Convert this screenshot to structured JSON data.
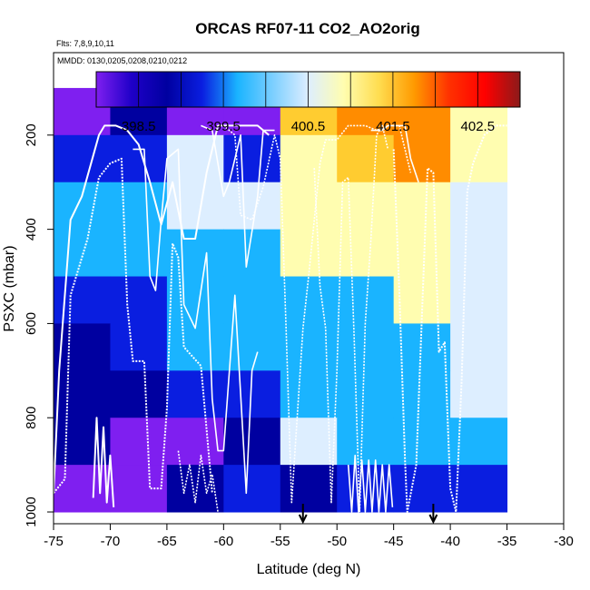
{
  "chart_data": {
    "type": "heatmap",
    "title": "ORCAS RF07-11 CO2_AO2orig",
    "subtitle_flights": "Flts: 7,8,9,10,11",
    "subtitle_dates": "MMDD: 0130,0205,0208,0210,0212",
    "xlabel": "Latitude (deg N)",
    "ylabel": "PSXC (mbar)",
    "xlim": [
      -75,
      -30
    ],
    "ylim": [
      1025,
      25
    ],
    "x_ticks": [
      -75,
      -70,
      -65,
      -60,
      -55,
      -50,
      -45,
      -40,
      -35,
      -30
    ],
    "y_ticks": [
      200,
      400,
      600,
      800,
      1000
    ],
    "colorbar": {
      "range": [
        398.0,
        403.0
      ],
      "ticks": [
        398.5,
        399.5,
        400.5,
        401.5,
        402.5
      ],
      "divisions": [
        398.0,
        398.5,
        399.0,
        399.5,
        400.0,
        400.5,
        401.0,
        401.5,
        402.0,
        402.5,
        403.0
      ],
      "colors": [
        "#7f1ff0",
        "#0000a0",
        "#0a1ee0",
        "#1ab4ff",
        "#ddeeff",
        "#fffdb0",
        "#ffcc30",
        "#ff8c00",
        "#ff0000",
        "#8b1a1a"
      ]
    },
    "lat_bins": [
      -75,
      -70,
      -65,
      -60,
      -55,
      -50,
      -45,
      -40,
      -35
    ],
    "p_bins": [
      100,
      200,
      300,
      400,
      500,
      600,
      700,
      800,
      900,
      1000
    ],
    "values": [
      [
        398.3,
        398.5,
        398.3,
        398.3,
        401.2,
        401.7,
        401.9,
        400.8
      ],
      [
        399.3,
        399.3,
        400.2,
        399.2,
        400.9,
        401.1,
        401.8,
        400.6
      ],
      [
        399.8,
        399.7,
        400.2,
        400.2,
        400.6,
        400.9,
        400.9,
        400.4
      ],
      [
        399.6,
        399.5,
        399.8,
        399.7,
        400.5,
        400.6,
        400.7,
        400.4
      ],
      [
        399.3,
        399.4,
        399.6,
        399.8,
        399.8,
        399.7,
        400.5,
        400.3
      ],
      [
        398.9,
        399.0,
        399.5,
        399.7,
        399.7,
        399.5,
        399.6,
        400.0
      ],
      [
        398.8,
        398.8,
        399.1,
        399.3,
        399.6,
        399.6,
        399.8,
        400.0
      ],
      [
        398.5,
        398.4,
        398.2,
        398.9,
        400.3,
        399.5,
        399.6,
        399.7
      ],
      [
        398.2,
        398.3,
        398.7,
        399.0,
        398.9,
        399.0,
        399.4,
        399.4
      ]
    ],
    "arrow_markers_lat": [
      -53,
      -41.5
    ],
    "flight_tracks": [
      {
        "name": "track-1",
        "points": [
          [
            -75,
            960
          ],
          [
            -74.5,
            700
          ],
          [
            -73.5,
            380
          ],
          [
            -72.5,
            330
          ],
          [
            -71,
            200
          ],
          [
            -70.5,
            180
          ],
          [
            -69.5,
            180
          ],
          [
            -68.5,
            190
          ],
          [
            -67.5,
            220
          ],
          [
            -66.5,
            300
          ],
          [
            -65.5,
            390
          ],
          [
            -64.5,
            300
          ],
          [
            -63.5,
            420
          ],
          [
            -62.5,
            420
          ],
          [
            -61.5,
            280
          ],
          [
            -60.5,
            180
          ],
          [
            -59.5,
            180
          ],
          [
            -58.5,
            180
          ],
          [
            -57,
            180
          ],
          [
            -56,
            200
          ]
        ]
      },
      {
        "name": "track-2",
        "points": [
          [
            -60,
            180
          ],
          [
            -59,
            200
          ],
          [
            -58.5,
            370
          ],
          [
            -57.5,
            380
          ],
          [
            -56.5,
            310
          ],
          [
            -55.5,
            200
          ],
          [
            -55,
            250
          ],
          [
            -54.5,
            600
          ],
          [
            -54,
            980
          ],
          [
            -53,
            610
          ],
          [
            -52.5,
            500
          ],
          [
            -51.5,
            260
          ],
          [
            -51,
            210
          ],
          [
            -50,
            210
          ],
          [
            -49,
            180
          ],
          [
            -47.5,
            180
          ],
          [
            -46.5,
            190
          ],
          [
            -45.5,
            180
          ],
          [
            -44.5,
            180
          ],
          [
            -43.5,
            280
          ]
        ]
      },
      {
        "name": "track-3",
        "points": [
          [
            -62,
            180
          ],
          [
            -61,
            190
          ],
          [
            -60,
            330
          ],
          [
            -59.5,
            300
          ],
          [
            -58.5,
            200
          ],
          [
            -58,
            480
          ],
          [
            -57,
            330
          ],
          [
            -56.5,
            190
          ],
          [
            -55.5,
            190
          ]
        ]
      },
      {
        "name": "track-4",
        "points": [
          [
            -75,
            960
          ],
          [
            -74,
            930
          ],
          [
            -73.5,
            540
          ],
          [
            -72,
            420
          ],
          [
            -71,
            290
          ],
          [
            -70,
            260
          ],
          [
            -69,
            250
          ],
          [
            -68.5,
            560
          ],
          [
            -68,
            680
          ],
          [
            -67,
            680
          ],
          [
            -66.5,
            950
          ],
          [
            -65.5,
            950
          ],
          [
            -65,
            780
          ],
          [
            -64.5,
            430
          ],
          [
            -64,
            460
          ],
          [
            -63.5,
            650
          ],
          [
            -62,
            690
          ],
          [
            -61,
            960
          ]
        ]
      },
      {
        "name": "track-5",
        "points": [
          [
            -68,
            230
          ],
          [
            -67,
            230
          ],
          [
            -66.5,
            500
          ],
          [
            -66,
            530
          ],
          [
            -65.5,
            380
          ],
          [
            -65,
            250
          ],
          [
            -64,
            230
          ],
          [
            -63.5,
            560
          ],
          [
            -62.5,
            610
          ],
          [
            -61.5,
            450
          ],
          [
            -61,
            760
          ],
          [
            -60.5,
            870
          ],
          [
            -60,
            870
          ],
          [
            -59,
            540
          ],
          [
            -58.5,
            750
          ],
          [
            -58,
            960
          ],
          [
            -57.5,
            700
          ],
          [
            -57,
            660
          ]
        ]
      },
      {
        "name": "track-6",
        "points": [
          [
            -64,
            870
          ],
          [
            -63.5,
            960
          ],
          [
            -63,
            900
          ],
          [
            -62.5,
            980
          ],
          [
            -62,
            880
          ],
          [
            -61.5,
            960
          ],
          [
            -61,
            920
          ],
          [
            -60.5,
            1000
          ]
        ]
      },
      {
        "name": "track-7",
        "points": [
          [
            -71.5,
            970
          ],
          [
            -71.2,
            800
          ],
          [
            -70.9,
            960
          ],
          [
            -70.6,
            820
          ],
          [
            -70.3,
            980
          ],
          [
            -70,
            880
          ],
          [
            -69.7,
            990
          ]
        ]
      },
      {
        "name": "track-8",
        "points": [
          [
            -52,
            270
          ],
          [
            -51.5,
            520
          ],
          [
            -51,
            610
          ],
          [
            -50.5,
            980
          ],
          [
            -50,
            700
          ],
          [
            -49.5,
            300
          ],
          [
            -49,
            290
          ],
          [
            -48.5,
            620
          ],
          [
            -48,
            1000
          ],
          [
            -47.5,
            600
          ],
          [
            -47,
            420
          ],
          [
            -46.5,
            200
          ],
          [
            -46,
            180
          ],
          [
            -45.5,
            230
          ]
        ]
      },
      {
        "name": "track-9",
        "points": [
          [
            -49,
            900
          ],
          [
            -48.7,
            1000
          ],
          [
            -48.4,
            880
          ],
          [
            -48.1,
            1000
          ],
          [
            -47.8,
            890
          ],
          [
            -47.5,
            1000
          ],
          [
            -47.2,
            890
          ],
          [
            -46.9,
            1000
          ],
          [
            -46.6,
            890
          ],
          [
            -46.3,
            1000
          ],
          [
            -46,
            900
          ],
          [
            -45.7,
            1000
          ],
          [
            -45.4,
            900
          ],
          [
            -45.1,
            990
          ]
        ]
      },
      {
        "name": "track-10",
        "points": [
          [
            -45,
            230
          ],
          [
            -44.5,
            530
          ],
          [
            -44,
            890
          ],
          [
            -43.8,
            1000
          ],
          [
            -43,
            900
          ],
          [
            -42.5,
            580
          ],
          [
            -42,
            270
          ],
          [
            -41.5,
            280
          ],
          [
            -41,
            660
          ],
          [
            -40.5,
            640
          ],
          [
            -40,
            950
          ],
          [
            -39.5,
            1000
          ],
          [
            -39,
            720
          ],
          [
            -38.5,
            320
          ],
          [
            -38,
            260
          ],
          [
            -37,
            200
          ],
          [
            -36,
            180
          ],
          [
            -35,
            180
          ]
        ]
      },
      {
        "name": "track-11",
        "points": [
          [
            -47,
            190
          ],
          [
            -46,
            190
          ],
          [
            -45.5,
            180
          ],
          [
            -44,
            180
          ],
          [
            -43.5,
            250
          ],
          [
            -42.8,
            300
          ]
        ]
      }
    ]
  }
}
